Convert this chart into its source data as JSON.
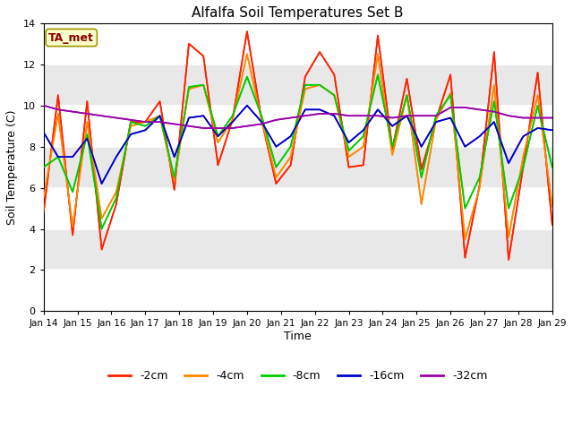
{
  "title": "Alfalfa Soil Temperatures Set B",
  "xlabel": "Time",
  "ylabel": "Soil Temperature (C)",
  "ylim": [
    0,
    14
  ],
  "yticks": [
    0,
    2,
    4,
    6,
    8,
    10,
    12,
    14
  ],
  "fig_bg": "#ffffff",
  "plot_bg": "#e8e8e8",
  "annotation_label": "TA_met",
  "annotation_color": "#8b0000",
  "annotation_bg": "#ffffcc",
  "annotation_edge": "#999900",
  "line_colors": {
    "-2cm": "#ff2200",
    "-4cm": "#ff8800",
    "-8cm": "#00cc00",
    "-16cm": "#0000cc",
    "-32cm": "#9900aa"
  },
  "legend_entries": [
    "-2cm",
    "-4cm",
    "-8cm",
    "-16cm",
    "-32cm"
  ],
  "x_tick_labels": [
    "Jan 14",
    "Jan 15",
    "Jan 16",
    "Jan 17",
    "Jan 18",
    "Jan 19",
    "Jan 20",
    "Jan 21",
    "Jan 22",
    "Jan 23",
    "Jan 24",
    "Jan 25",
    "Jan 26",
    "Jan 27",
    "Jan 28",
    "Jan 29"
  ],
  "data_neg2cm": [
    4.8,
    10.5,
    3.7,
    10.2,
    3.0,
    5.2,
    9.2,
    9.2,
    10.2,
    5.9,
    13.0,
    12.4,
    7.1,
    9.3,
    13.6,
    9.3,
    6.2,
    7.1,
    11.4,
    12.6,
    11.5,
    7.0,
    7.1,
    13.4,
    7.9,
    11.3,
    6.9,
    9.3,
    11.5,
    2.6,
    6.1,
    12.6,
    2.5,
    7.0,
    11.6,
    4.2
  ],
  "data_neg4cm": [
    5.5,
    9.6,
    4.1,
    9.2,
    4.5,
    5.8,
    9.0,
    9.2,
    9.5,
    6.3,
    10.8,
    11.0,
    8.2,
    9.3,
    12.5,
    9.3,
    6.5,
    7.5,
    10.8,
    11.0,
    10.5,
    7.5,
    8.0,
    12.5,
    7.6,
    10.5,
    5.2,
    9.3,
    10.6,
    3.5,
    6.0,
    11.0,
    3.6,
    7.5,
    10.5,
    5.1
  ],
  "data_neg8cm": [
    7.0,
    7.5,
    5.8,
    8.6,
    4.0,
    5.5,
    9.2,
    9.0,
    9.5,
    6.5,
    10.9,
    11.0,
    8.5,
    9.5,
    11.4,
    9.5,
    7.0,
    8.0,
    11.0,
    11.0,
    10.5,
    7.8,
    8.5,
    11.5,
    8.0,
    10.5,
    6.5,
    9.5,
    10.5,
    5.0,
    6.5,
    10.2,
    5.0,
    7.0,
    10.0,
    7.0
  ],
  "data_neg16cm": [
    8.7,
    7.5,
    7.5,
    8.4,
    6.2,
    7.5,
    8.6,
    8.8,
    9.5,
    7.5,
    9.4,
    9.5,
    8.5,
    9.2,
    10.0,
    9.2,
    8.0,
    8.5,
    9.8,
    9.8,
    9.5,
    8.2,
    8.8,
    9.8,
    9.0,
    9.5,
    8.0,
    9.2,
    9.4,
    8.0,
    8.5,
    9.2,
    7.2,
    8.5,
    8.9,
    8.8
  ],
  "data_neg32cm": [
    10.0,
    9.8,
    9.7,
    9.6,
    9.5,
    9.4,
    9.3,
    9.2,
    9.2,
    9.1,
    9.0,
    8.9,
    8.9,
    8.9,
    9.0,
    9.1,
    9.3,
    9.4,
    9.5,
    9.6,
    9.6,
    9.5,
    9.5,
    9.5,
    9.4,
    9.5,
    9.5,
    9.5,
    9.9,
    9.9,
    9.8,
    9.7,
    9.5,
    9.4,
    9.4,
    9.4
  ]
}
